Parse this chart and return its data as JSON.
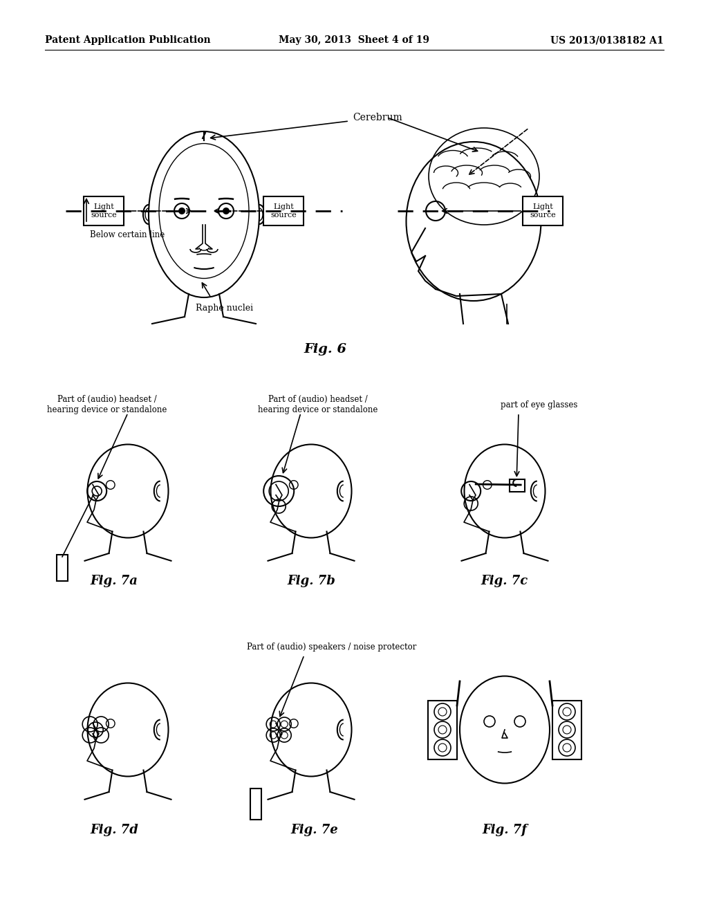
{
  "background_color": "#ffffff",
  "header_left": "Patent Application Publication",
  "header_center": "May 30, 2013  Sheet 4 of 19",
  "header_right": "US 2013/0138182 A1",
  "fig6_title": "Fig. 6",
  "fig6_labels": {
    "cerebrum": "Cerebrum",
    "below_line": "Below certain line",
    "raphe_nuclei": "Raphe nuclei",
    "light_source_left": "Light\nsource",
    "light_source_right": "Light\nsource",
    "light_source_side": "Light\nsource"
  },
  "fig7a_title": "Fig. 7a",
  "fig7a_label": "Part of (audio) headset /\nhearing device or standalone",
  "fig7b_title": "Fig. 7b",
  "fig7b_label": "Part of (audio) headset /\nhearing device or standalone",
  "fig7c_title": "Fig. 7c",
  "fig7c_label": "part of eye glasses",
  "fig7d_title": "Fig. 7d",
  "fig7e_title": "Fig. 7e",
  "fig7e_label": "Part of (audio) speakers / noise protector",
  "fig7f_title": "Fig. 7f"
}
